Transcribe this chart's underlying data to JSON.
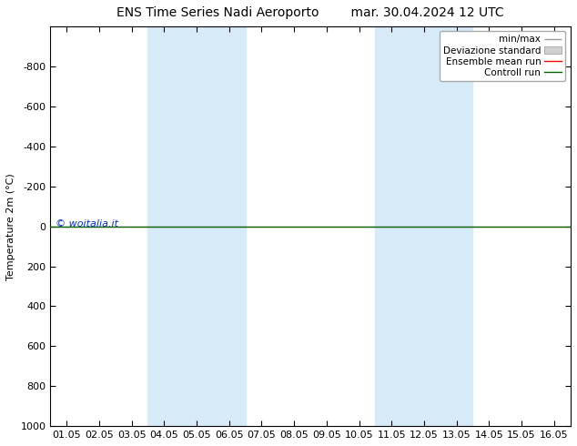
{
  "title_left": "ENS Time Series Nadi Aeroporto",
  "title_right": "mar. 30.04.2024 12 UTC",
  "ylabel": "Temperature 2m (°C)",
  "ylim_top": -1000,
  "ylim_bottom": 1000,
  "yticks": [
    -800,
    -600,
    -400,
    -200,
    0,
    200,
    400,
    600,
    800,
    1000
  ],
  "xtick_labels": [
    "01.05",
    "02.05",
    "03.05",
    "04.05",
    "05.05",
    "06.05",
    "07.05",
    "08.05",
    "09.05",
    "10.05",
    "11.05",
    "12.05",
    "13.05",
    "14.05",
    "15.05",
    "16.05"
  ],
  "xtick_positions": [
    0,
    1,
    2,
    3,
    4,
    5,
    6,
    7,
    8,
    9,
    10,
    11,
    12,
    13,
    14,
    15
  ],
  "shaded_bands": [
    {
      "x_start": 3,
      "x_end": 5
    },
    {
      "x_start": 10,
      "x_end": 12
    }
  ],
  "band_color": "#d6eaf8",
  "band_alpha": 1.0,
  "line_y": 0,
  "green_line_color": "#006600",
  "red_line_color": "#ff0000",
  "watermark": "© woitalia.it",
  "watermark_color": "#0033cc",
  "legend_minmax_color": "#999999",
  "legend_std_color": "#d0d0d0",
  "background_color": "#ffffff",
  "plot_bg_color": "#ffffff",
  "title_fontsize": 10,
  "axis_fontsize": 8,
  "tick_fontsize": 8,
  "legend_fontsize": 7.5
}
